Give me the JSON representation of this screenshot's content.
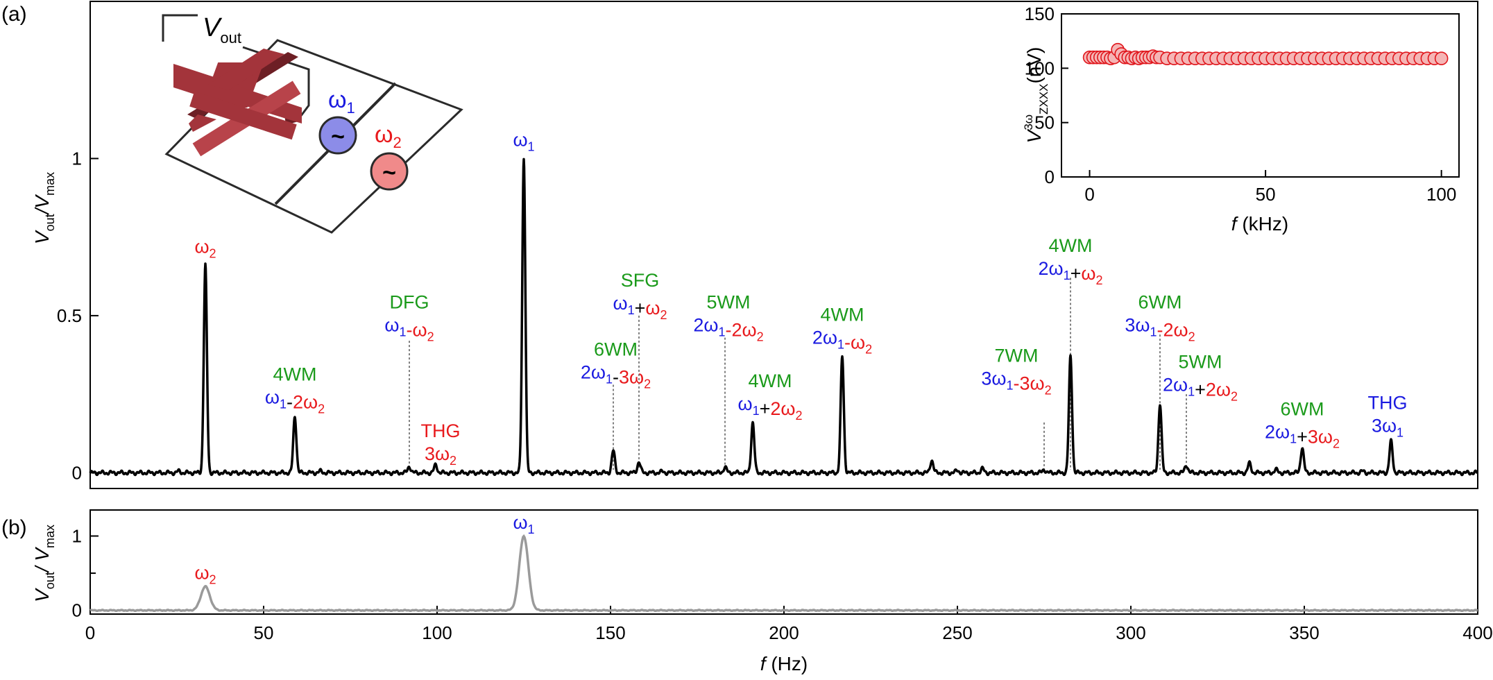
{
  "colors": {
    "blue": "#1a1ae0",
    "red": "#e8191c",
    "green": "#1a9a1a",
    "black": "#000000",
    "grey": "#9a9a9a",
    "inset_fill": "#f5b5b5",
    "inset_stroke": "#e0161c",
    "cross": "#a3343b",
    "src1": "#8c8ce8",
    "src2": "#f08a8a"
  },
  "panels": {
    "a": "(a)",
    "b": "(b)"
  },
  "chart_data": [
    {
      "id": "main",
      "type": "line",
      "xlabel": "f (Hz)",
      "ylabel": "Vout/Vmax",
      "xlim": [
        0,
        400
      ],
      "ylim": [
        -0.05,
        1.5
      ],
      "yticks": [
        0,
        0.5,
        1
      ],
      "ytick_labels": [
        "0",
        "0.5",
        "1"
      ],
      "peaks": [
        {
          "x": 25.5,
          "y": 0.005
        },
        {
          "x": 33.2,
          "y": 0.66
        },
        {
          "x": 59.0,
          "y": 0.18
        },
        {
          "x": 66.4,
          "y": 0.005
        },
        {
          "x": 92.0,
          "y": 0.02
        },
        {
          "x": 99.6,
          "y": 0.025
        },
        {
          "x": 125.0,
          "y": 1.0
        },
        {
          "x": 150.8,
          "y": 0.07
        },
        {
          "x": 158.2,
          "y": 0.035
        },
        {
          "x": 165.0,
          "y": 0.004
        },
        {
          "x": 183.0,
          "y": 0.018
        },
        {
          "x": 191.0,
          "y": 0.16
        },
        {
          "x": 216.8,
          "y": 0.37
        },
        {
          "x": 242.6,
          "y": 0.04
        },
        {
          "x": 250.0,
          "y": 0.008
        },
        {
          "x": 257.2,
          "y": 0.013
        },
        {
          "x": 275.0,
          "y": 0.01
        },
        {
          "x": 282.6,
          "y": 0.37
        },
        {
          "x": 308.4,
          "y": 0.22
        },
        {
          "x": 316.0,
          "y": 0.025
        },
        {
          "x": 334.2,
          "y": 0.03
        },
        {
          "x": 341.8,
          "y": 0.01
        },
        {
          "x": 349.4,
          "y": 0.08
        },
        {
          "x": 366.8,
          "y": 0.005
        },
        {
          "x": 375.0,
          "y": 0.1
        }
      ],
      "dotted_markers": [
        {
          "x": 92.0,
          "y_top": 0.42
        },
        {
          "x": 150.8,
          "y_top": 0.28
        },
        {
          "x": 158.2,
          "y_top": 0.5
        },
        {
          "x": 183.0,
          "y_top": 0.43
        },
        {
          "x": 275.0,
          "y_top": 0.16
        },
        {
          "x": 282.6,
          "y_top": 0.62
        },
        {
          "x": 308.4,
          "y_top": 0.44
        },
        {
          "x": 316.0,
          "y_top": 0.25
        }
      ],
      "annotations": [
        {
          "x": 33.2,
          "y": 0.7,
          "lines": [
            [
              {
                "t": "ω",
                "c": "red"
              },
              {
                "t": "2",
                "c": "red",
                "sub": true
              }
            ]
          ]
        },
        {
          "x": 125.0,
          "y": 1.04,
          "lines": [
            [
              {
                "t": "ω",
                "c": "blue"
              },
              {
                "t": "1",
                "c": "blue",
                "sub": true
              }
            ]
          ]
        },
        {
          "x": 59.0,
          "y": 0.22,
          "lines": [
            [
              {
                "t": "4WM",
                "c": "green"
              }
            ],
            [
              {
                "t": "ω",
                "c": "blue"
              },
              {
                "t": "1",
                "c": "blue",
                "sub": true
              },
              {
                "t": "-",
                "c": "black"
              },
              {
                "t": "2ω",
                "c": "red"
              },
              {
                "t": "2",
                "c": "red",
                "sub": true
              }
            ]
          ]
        },
        {
          "x": 92.0,
          "y": 0.45,
          "lines": [
            [
              {
                "t": "DFG",
                "c": "green"
              }
            ],
            [
              {
                "t": "ω",
                "c": "blue"
              },
              {
                "t": "1",
                "c": "blue",
                "sub": true
              },
              {
                "t": "-",
                "c": "red"
              },
              {
                "t": "ω",
                "c": "red"
              },
              {
                "t": "2",
                "c": "red",
                "sub": true
              }
            ]
          ]
        },
        {
          "x": 101.0,
          "y": 0.04,
          "lines": [
            [
              {
                "t": "THG",
                "c": "red"
              }
            ],
            [
              {
                "t": "3ω",
                "c": "red"
              },
              {
                "t": "2",
                "c": "red",
                "sub": true
              }
            ]
          ]
        },
        {
          "x": 151.5,
          "y": 0.3,
          "lines": [
            [
              {
                "t": "6WM",
                "c": "green"
              }
            ],
            [
              {
                "t": "2ω",
                "c": "blue"
              },
              {
                "t": "1",
                "c": "blue",
                "sub": true
              },
              {
                "t": "-",
                "c": "black"
              },
              {
                "t": "3ω",
                "c": "red"
              },
              {
                "t": "2",
                "c": "red",
                "sub": true
              }
            ]
          ]
        },
        {
          "x": 158.5,
          "y": 0.52,
          "lines": [
            [
              {
                "t": "SFG",
                "c": "green"
              }
            ],
            [
              {
                "t": "ω",
                "c": "blue"
              },
              {
                "t": "1",
                "c": "blue",
                "sub": true
              },
              {
                "t": "+",
                "c": "black"
              },
              {
                "t": "ω",
                "c": "red"
              },
              {
                "t": "2",
                "c": "red",
                "sub": true
              }
            ]
          ]
        },
        {
          "x": 184.0,
          "y": 0.45,
          "lines": [
            [
              {
                "t": "5WM",
                "c": "green"
              }
            ],
            [
              {
                "t": "2ω",
                "c": "blue"
              },
              {
                "t": "1",
                "c": "blue",
                "sub": true
              },
              {
                "t": "-",
                "c": "red"
              },
              {
                "t": "2ω",
                "c": "red"
              },
              {
                "t": "2",
                "c": "red",
                "sub": true
              }
            ]
          ]
        },
        {
          "x": 196.0,
          "y": 0.2,
          "lines": [
            [
              {
                "t": "4WM",
                "c": "green"
              }
            ],
            [
              {
                "t": "ω",
                "c": "blue"
              },
              {
                "t": "1",
                "c": "blue",
                "sub": true
              },
              {
                "t": "+",
                "c": "black"
              },
              {
                "t": "2ω",
                "c": "red"
              },
              {
                "t": "2",
                "c": "red",
                "sub": true
              }
            ]
          ]
        },
        {
          "x": 216.8,
          "y": 0.41,
          "lines": [
            [
              {
                "t": "4WM",
                "c": "green"
              }
            ],
            [
              {
                "t": "2ω",
                "c": "blue"
              },
              {
                "t": "1",
                "c": "blue",
                "sub": true
              },
              {
                "t": "-",
                "c": "red"
              },
              {
                "t": "ω",
                "c": "red"
              },
              {
                "t": "2",
                "c": "red",
                "sub": true
              }
            ]
          ]
        },
        {
          "x": 267.0,
          "y": 0.28,
          "lines": [
            [
              {
                "t": "7WM",
                "c": "green"
              }
            ],
            [
              {
                "t": "3ω",
                "c": "blue"
              },
              {
                "t": "1",
                "c": "blue",
                "sub": true
              },
              {
                "t": "-",
                "c": "red"
              },
              {
                "t": "3ω",
                "c": "red"
              },
              {
                "t": "2",
                "c": "red",
                "sub": true
              }
            ]
          ]
        },
        {
          "x": 282.6,
          "y": 0.63,
          "lines": [
            [
              {
                "t": "4WM",
                "c": "green"
              }
            ],
            [
              {
                "t": "2ω",
                "c": "blue"
              },
              {
                "t": "1",
                "c": "blue",
                "sub": true
              },
              {
                "t": "+",
                "c": "black"
              },
              {
                "t": "ω",
                "c": "red"
              },
              {
                "t": "2",
                "c": "red",
                "sub": true
              }
            ]
          ]
        },
        {
          "x": 308.4,
          "y": 0.45,
          "lines": [
            [
              {
                "t": "6WM",
                "c": "green"
              }
            ],
            [
              {
                "t": "3ω",
                "c": "blue"
              },
              {
                "t": "1",
                "c": "blue",
                "sub": true
              },
              {
                "t": "-",
                "c": "red"
              },
              {
                "t": "2ω",
                "c": "red"
              },
              {
                "t": "2",
                "c": "red",
                "sub": true
              }
            ]
          ]
        },
        {
          "x": 320.0,
          "y": 0.26,
          "lines": [
            [
              {
                "t": "5WM",
                "c": "green"
              }
            ],
            [
              {
                "t": "2ω",
                "c": "blue"
              },
              {
                "t": "1",
                "c": "blue",
                "sub": true
              },
              {
                "t": "+",
                "c": "black"
              },
              {
                "t": "2ω",
                "c": "red"
              },
              {
                "t": "2",
                "c": "red",
                "sub": true
              }
            ]
          ]
        },
        {
          "x": 349.4,
          "y": 0.11,
          "lines": [
            [
              {
                "t": "6WM",
                "c": "green"
              }
            ],
            [
              {
                "t": "2ω",
                "c": "blue"
              },
              {
                "t": "1",
                "c": "blue",
                "sub": true
              },
              {
                "t": "+",
                "c": "black"
              },
              {
                "t": "3ω",
                "c": "red"
              },
              {
                "t": "2",
                "c": "red",
                "sub": true
              }
            ]
          ]
        },
        {
          "x": 374.0,
          "y": 0.13,
          "lines": [
            [
              {
                "t": "THG",
                "c": "blue"
              }
            ],
            [
              {
                "t": "3ω",
                "c": "blue"
              },
              {
                "t": "1",
                "c": "blue",
                "sub": true
              }
            ]
          ]
        }
      ]
    },
    {
      "id": "bottom",
      "type": "line",
      "xlabel": "f (Hz)",
      "ylabel": "Vout/ Vmax",
      "xlim": [
        0,
        400
      ],
      "ylim": [
        -0.05,
        1.35
      ],
      "xticks": [
        0,
        50,
        100,
        150,
        200,
        250,
        300,
        350,
        400
      ],
      "yticks": [
        0,
        1
      ],
      "peaks": [
        {
          "x": 33.2,
          "y": 0.32
        },
        {
          "x": 125.0,
          "y": 1.0
        }
      ],
      "annotations": [
        {
          "x": 33.2,
          "y": 0.42,
          "lines": [
            [
              {
                "t": "ω",
                "c": "red"
              },
              {
                "t": "2",
                "c": "red",
                "sub": true
              }
            ]
          ]
        },
        {
          "x": 125.0,
          "y": 1.1,
          "lines": [
            [
              {
                "t": "ω",
                "c": "blue"
              },
              {
                "t": "1",
                "c": "blue",
                "sub": true
              }
            ]
          ]
        }
      ]
    },
    {
      "id": "inset",
      "type": "scatter",
      "xlabel": "f (kHz)",
      "ylabel": "V3ω ZXXX(nV)",
      "xlim": [
        -8,
        105
      ],
      "ylim": [
        0,
        150
      ],
      "xticks": [
        0,
        50,
        100
      ],
      "yticks": [
        0,
        50,
        100,
        150
      ],
      "x": [
        0,
        1,
        2,
        3,
        4,
        5,
        6,
        7,
        8,
        9,
        10,
        11,
        12,
        13,
        14,
        15,
        16,
        17,
        18,
        19,
        20,
        22,
        24,
        26,
        28,
        30,
        32,
        34,
        36,
        38,
        40,
        42,
        44,
        46,
        48,
        50,
        52,
        54,
        56,
        58,
        60,
        62,
        64,
        66,
        68,
        70,
        72,
        74,
        76,
        78,
        80,
        82,
        84,
        86,
        88,
        90,
        92,
        94,
        96,
        98,
        100
      ],
      "y": [
        110,
        110,
        110,
        110,
        110,
        110,
        109,
        110,
        117,
        113,
        110,
        110,
        109,
        110,
        109,
        110,
        110,
        110,
        111,
        110,
        110,
        109,
        109,
        109,
        109,
        109,
        109,
        109,
        109,
        109,
        109,
        109,
        109,
        109,
        109,
        109,
        109,
        109,
        109,
        109,
        109,
        109,
        109,
        109,
        109,
        109,
        109,
        109,
        109,
        109,
        109,
        109,
        109,
        109,
        109,
        109,
        109,
        109,
        109,
        109,
        109
      ]
    }
  ],
  "schematic": {
    "vout_label": "V",
    "vout_sub": "out",
    "omega1_label": "ω",
    "omega1_sub": "1",
    "omega2_label": "ω",
    "omega2_sub": "2",
    "source_symbol": "~"
  }
}
